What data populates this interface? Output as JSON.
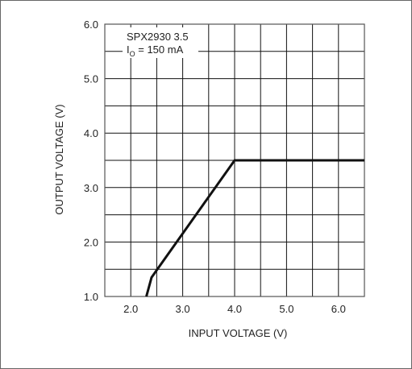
{
  "chart_data": {
    "type": "line",
    "xlabel": "INPUT VOLTAGE (V)",
    "ylabel": "OUTPUT VOLTAGE (V)",
    "xlim": [
      1.5,
      6.5
    ],
    "ylim": [
      1.0,
      6.0
    ],
    "x_ticks": [
      2.0,
      3.0,
      4.0,
      5.0,
      6.0
    ],
    "x_tick_labels": [
      "2.0",
      "3.0",
      "4.0",
      "5.0",
      "6.0"
    ],
    "y_ticks": [
      1.0,
      2.0,
      3.0,
      4.0,
      5.0,
      6.0
    ],
    "y_tick_labels": [
      "1.0",
      "2.0",
      "3.0",
      "4.0",
      "5.0",
      "6.0"
    ],
    "x_minor_grid_step": 0.5,
    "y_minor_grid_step": 0.5,
    "grid": true,
    "legend_position": "top-left",
    "annotation": {
      "line1": "SPX2930 3.5",
      "line2_prefix": "I",
      "line2_sub": "O",
      "line2_suffix": " = 150 mA"
    },
    "series": [
      {
        "x": [
          2.3,
          2.4,
          4.0,
          6.5
        ],
        "y": [
          1.0,
          1.35,
          3.5,
          3.5
        ]
      }
    ],
    "colors": {
      "line": "#111111",
      "grid": "#111111",
      "frame": "#555555"
    }
  }
}
